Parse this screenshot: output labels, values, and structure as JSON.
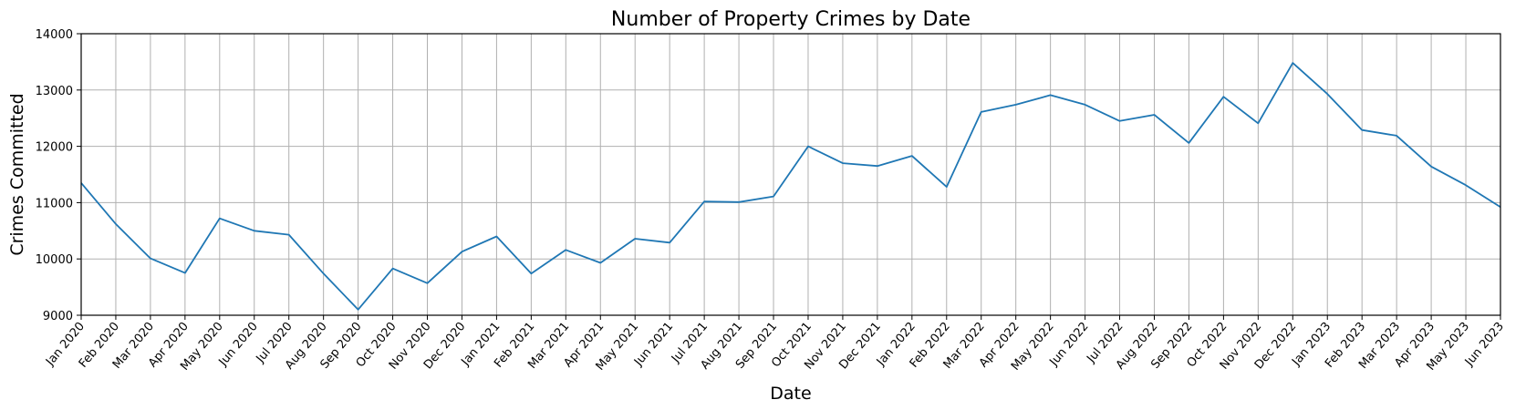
{
  "chart_data": {
    "type": "line",
    "title": "Number of Property Crimes by Date",
    "xlabel": "Date",
    "ylabel": "Crimes Committed",
    "ylim": [
      9000,
      14000
    ],
    "yticks": [
      "9000",
      "10000",
      "11000",
      "12000",
      "13000",
      "14000"
    ],
    "grid": true,
    "line_color": "#1f77b4",
    "categories": [
      "Jan 2020",
      "Feb 2020",
      "Mar 2020",
      "Apr 2020",
      "May 2020",
      "Jun 2020",
      "Jul 2020",
      "Aug 2020",
      "Sep 2020",
      "Oct 2020",
      "Nov 2020",
      "Dec 2020",
      "Jan 2021",
      "Feb 2021",
      "Mar 2021",
      "Apr 2021",
      "May 2021",
      "Jun 2021",
      "Jul 2021",
      "Aug 2021",
      "Sep 2021",
      "Oct 2021",
      "Nov 2021",
      "Dec 2021",
      "Jan 2022",
      "Feb 2022",
      "Mar 2022",
      "Apr 2022",
      "May 2022",
      "Jun 2022",
      "Jul 2022",
      "Aug 2022",
      "Sep 2022",
      "Oct 2022",
      "Nov 2022",
      "Dec 2022",
      "Jan 2023",
      "Feb 2023",
      "Mar 2023",
      "Apr 2023",
      "May 2023",
      "Jun 2023"
    ],
    "values": [
      11350,
      10620,
      10010,
      9750,
      10720,
      10500,
      10430,
      9740,
      9100,
      9830,
      9570,
      10130,
      10400,
      9740,
      10160,
      9930,
      10360,
      10290,
      11020,
      11010,
      11110,
      12000,
      11700,
      11650,
      11830,
      11280,
      12610,
      12740,
      12910,
      12740,
      12450,
      12560,
      12060,
      12880,
      12410,
      13480,
      12930,
      12290,
      12190,
      11640,
      11310,
      10920
    ]
  }
}
